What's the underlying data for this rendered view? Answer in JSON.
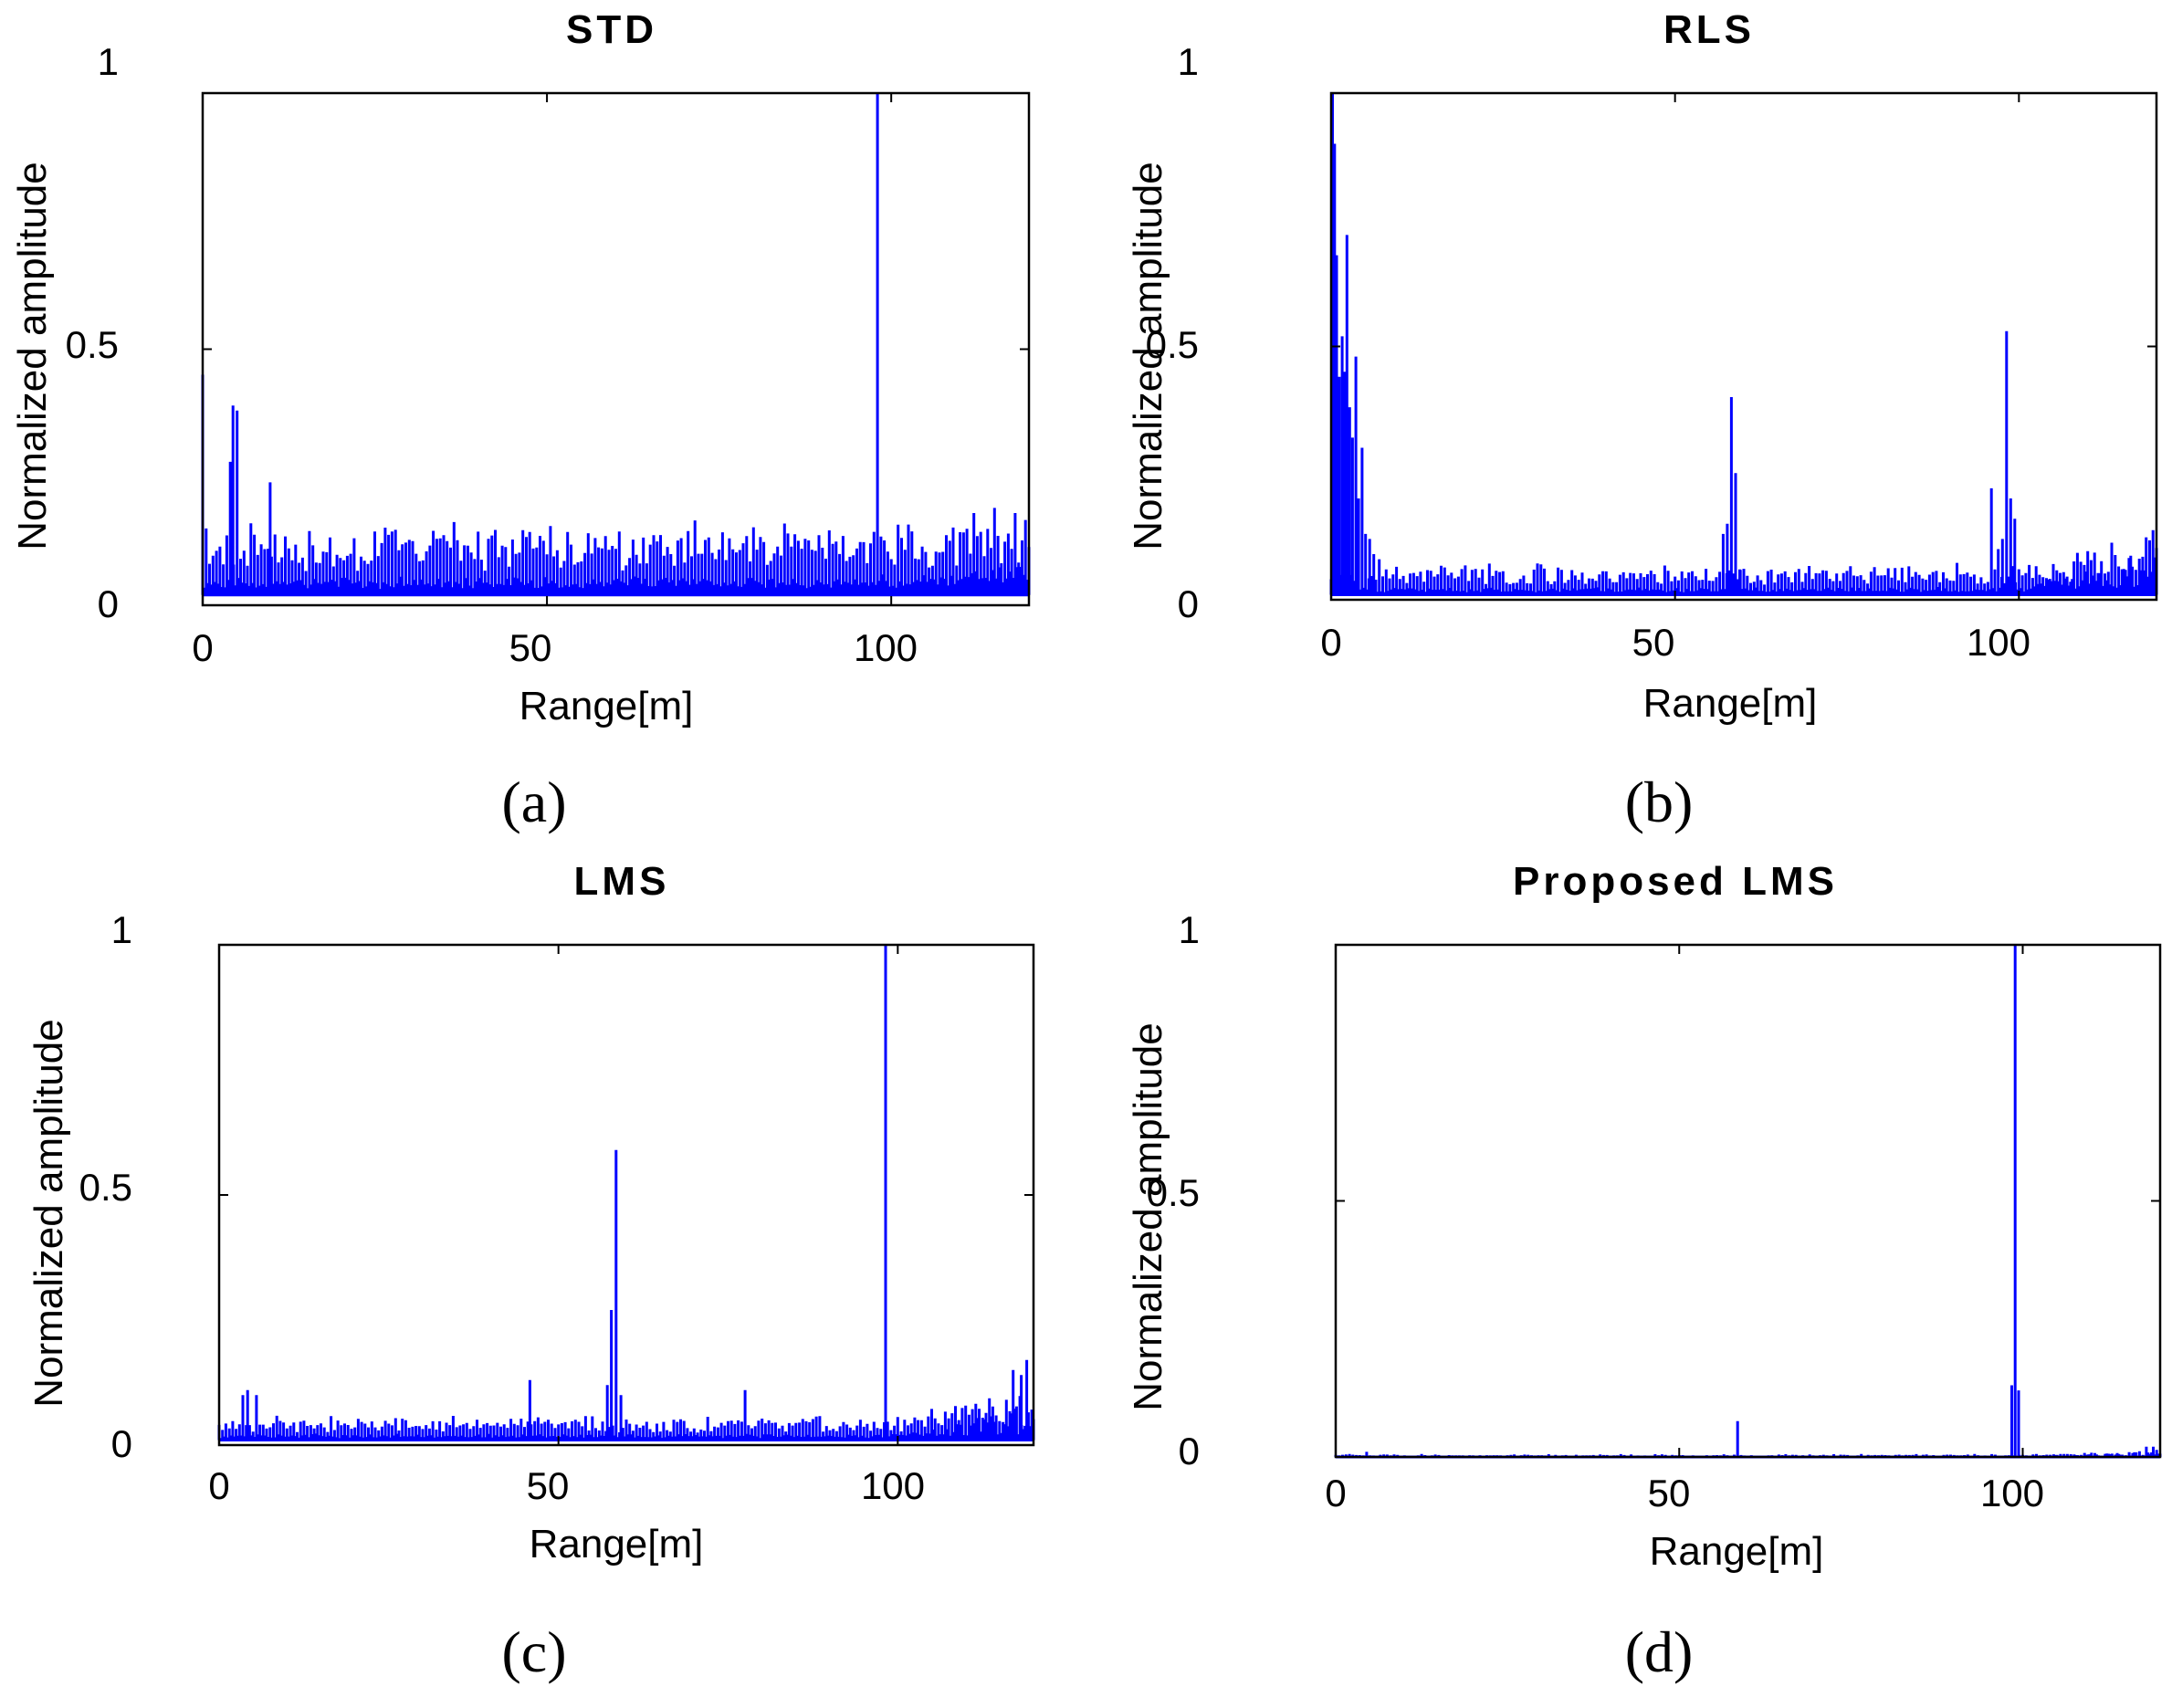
{
  "figure": {
    "panels": [
      {
        "id": "a",
        "caption": "(a)"
      },
      {
        "id": "b",
        "caption": "(b)"
      },
      {
        "id": "c",
        "caption": "(c)"
      },
      {
        "id": "d",
        "caption": "(d)"
      }
    ]
  },
  "style": {
    "line_color": "#0000ff",
    "axis_color": "#000000"
  },
  "chart_data": [
    {
      "type": "line",
      "title": "STD",
      "xlabel": "Range[m]",
      "ylabel": "Normalized amplitude",
      "xlim": [
        0,
        120
      ],
      "ylim": [
        0,
        1
      ],
      "xticks": [
        0,
        50,
        100
      ],
      "yticks": [
        0,
        0.5,
        1
      ],
      "yticklabels": [
        "0",
        "0.5",
        "1"
      ],
      "baseline": 0.02,
      "noise": {
        "base": 0.085,
        "amp": 0.03,
        "seed": 11,
        "end_rise": 0.04
      },
      "peaks": [
        [
          0,
          0.45
        ],
        [
          0.5,
          0.15
        ],
        [
          4,
          0.28
        ],
        [
          4.4,
          0.39
        ],
        [
          5,
          0.38
        ],
        [
          7,
          0.16
        ],
        [
          9.8,
          0.24
        ],
        [
          98,
          1.0
        ],
        [
          98.6,
          0.06
        ],
        [
          112,
          0.18
        ],
        [
          115,
          0.19
        ],
        [
          118,
          0.18
        ]
      ]
    },
    {
      "type": "line",
      "title": "RLS",
      "xlabel": "Range[m]",
      "ylabel": "Normalized amplitude",
      "xlim": [
        0,
        120
      ],
      "ylim": [
        0,
        1
      ],
      "xticks": [
        0,
        50,
        100
      ],
      "yticks": [
        0,
        0.5,
        1
      ],
      "yticklabels": [
        "0",
        "0.5",
        "1"
      ],
      "baseline": 0.01,
      "noise": {
        "base": 0.035,
        "amp": 0.015,
        "seed": 23,
        "end_rise": 0.08
      },
      "peaks": [
        [
          0.2,
          1.0
        ],
        [
          0.5,
          0.9
        ],
        [
          0.8,
          0.68
        ],
        [
          1.2,
          0.44
        ],
        [
          1.6,
          0.52
        ],
        [
          2.0,
          0.45
        ],
        [
          2.3,
          0.72
        ],
        [
          2.7,
          0.38
        ],
        [
          3.1,
          0.32
        ],
        [
          3.6,
          0.48
        ],
        [
          4.0,
          0.2
        ],
        [
          4.5,
          0.3
        ],
        [
          5.0,
          0.13
        ],
        [
          5.6,
          0.12
        ],
        [
          6.2,
          0.09
        ],
        [
          7,
          0.08
        ],
        [
          8,
          0.06
        ],
        [
          57,
          0.13
        ],
        [
          57.6,
          0.15
        ],
        [
          58.2,
          0.4
        ],
        [
          58.8,
          0.25
        ],
        [
          59.4,
          0.06
        ],
        [
          96,
          0.22
        ],
        [
          97,
          0.1
        ],
        [
          97.6,
          0.12
        ],
        [
          98.2,
          0.53
        ],
        [
          98.8,
          0.2
        ],
        [
          99.4,
          0.16
        ],
        [
          100,
          0.06
        ]
      ]
    },
    {
      "type": "line",
      "title": "LMS",
      "xlabel": "Range[m]",
      "ylabel": "Normalized amplitude",
      "xlim": [
        0,
        120
      ],
      "ylim": [
        0,
        1
      ],
      "xticks": [
        0,
        50,
        100
      ],
      "yticks": [
        0,
        0.5,
        1
      ],
      "yticklabels": [
        "0",
        "0.5",
        "1"
      ],
      "baseline": 0.01,
      "noise": {
        "base": 0.028,
        "amp": 0.014,
        "seed": 37,
        "end_rise": 0.07
      },
      "peaks": [
        [
          3.5,
          0.1
        ],
        [
          4.2,
          0.11
        ],
        [
          5.5,
          0.1
        ],
        [
          45.8,
          0.13
        ],
        [
          57.2,
          0.12
        ],
        [
          57.8,
          0.27
        ],
        [
          58.5,
          0.59
        ],
        [
          59.2,
          0.1
        ],
        [
          77.5,
          0.11
        ],
        [
          98.2,
          1.0
        ],
        [
          119,
          0.17
        ],
        [
          118.2,
          0.14
        ],
        [
          117,
          0.15
        ]
      ]
    },
    {
      "type": "line",
      "title": "Proposed LMS",
      "xlabel": "Range[m]",
      "ylabel": "Normalized amplitude",
      "xlim": [
        0,
        120
      ],
      "ylim": [
        0,
        1
      ],
      "xticks": [
        0,
        50,
        100
      ],
      "yticks": [
        0,
        0.5,
        1
      ],
      "yticklabels": [
        "0",
        "0.5",
        "1"
      ],
      "baseline": 0.0,
      "noise": {
        "base": 0.003,
        "amp": 0.002,
        "seed": 41,
        "end_rise": 0.01
      },
      "peaks": [
        [
          4.5,
          0.01
        ],
        [
          58.5,
          0.07
        ],
        [
          98.4,
          0.14
        ],
        [
          98.9,
          1.0
        ],
        [
          99.4,
          0.13
        ],
        [
          117,
          0.01
        ],
        [
          118,
          0.02
        ],
        [
          119,
          0.02
        ]
      ]
    }
  ]
}
